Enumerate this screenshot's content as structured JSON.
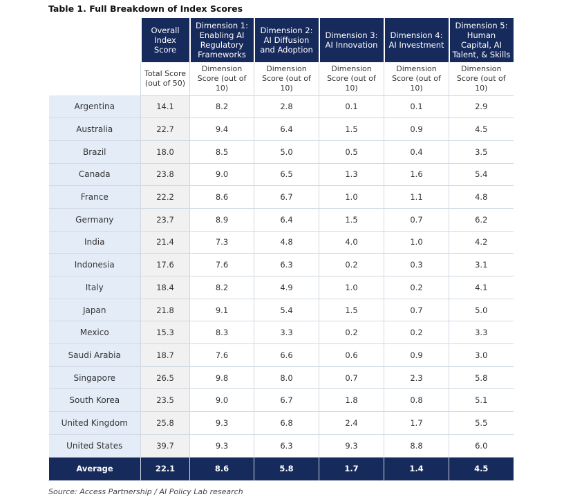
{
  "title": "Table 1. Full Breakdown of Index Scores",
  "table": {
    "headers": [
      "Overall Index Score",
      "Dimension 1: Enabling AI Regulatory Frameworks",
      "Dimension 2: AI Diffusion and Adoption",
      "Dimension 3: AI Innovation",
      "Dimension 4: AI Investment",
      "Dimension 5: Human Capital, AI Talent, & Skills"
    ],
    "subheaders": [
      "Total Score (out of 50)",
      "Dimension Score (out of 10)",
      "Dimension Score (out of 10)",
      "Dimension Score (out of 10)",
      "Dimension Score (out of 10)",
      "Dimension Score (out of 10)"
    ],
    "rows": [
      {
        "label": "Argentina",
        "values": [
          "14.1",
          "8.2",
          "2.8",
          "0.1",
          "0.1",
          "2.9"
        ]
      },
      {
        "label": "Australia",
        "values": [
          "22.7",
          "9.4",
          "6.4",
          "1.5",
          "0.9",
          "4.5"
        ]
      },
      {
        "label": "Brazil",
        "values": [
          "18.0",
          "8.5",
          "5.0",
          "0.5",
          "0.4",
          "3.5"
        ]
      },
      {
        "label": "Canada",
        "values": [
          "23.8",
          "9.0",
          "6.5",
          "1.3",
          "1.6",
          "5.4"
        ]
      },
      {
        "label": "France",
        "values": [
          "22.2",
          "8.6",
          "6.7",
          "1.0",
          "1.1",
          "4.8"
        ]
      },
      {
        "label": "Germany",
        "values": [
          "23.7",
          "8.9",
          "6.4",
          "1.5",
          "0.7",
          "6.2"
        ]
      },
      {
        "label": "India",
        "values": [
          "21.4",
          "7.3",
          "4.8",
          "4.0",
          "1.0",
          "4.2"
        ]
      },
      {
        "label": "Indonesia",
        "values": [
          "17.6",
          "7.6",
          "6.3",
          "0.2",
          "0.3",
          "3.1"
        ]
      },
      {
        "label": "Italy",
        "values": [
          "18.4",
          "8.2",
          "4.9",
          "1.0",
          "0.2",
          "4.1"
        ]
      },
      {
        "label": "Japan",
        "values": [
          "21.8",
          "9.1",
          "5.4",
          "1.5",
          "0.7",
          "5.0"
        ]
      },
      {
        "label": "Mexico",
        "values": [
          "15.3",
          "8.3",
          "3.3",
          "0.2",
          "0.2",
          "3.3"
        ]
      },
      {
        "label": "Saudi Arabia",
        "values": [
          "18.7",
          "7.6",
          "6.6",
          "0.6",
          "0.9",
          "3.0"
        ]
      },
      {
        "label": "Singapore",
        "values": [
          "26.5",
          "9.8",
          "8.0",
          "0.7",
          "2.3",
          "5.8"
        ]
      },
      {
        "label": "South Korea",
        "values": [
          "23.5",
          "9.0",
          "6.7",
          "1.8",
          "0.8",
          "5.1"
        ]
      },
      {
        "label": "United Kingdom",
        "values": [
          "25.8",
          "9.3",
          "6.8",
          "2.4",
          "1.7",
          "5.5"
        ]
      },
      {
        "label": "United States",
        "values": [
          "39.7",
          "9.3",
          "6.3",
          "9.3",
          "8.8",
          "6.0"
        ]
      }
    ],
    "average": {
      "label": "Average",
      "values": [
        "22.1",
        "8.6",
        "5.8",
        "1.7",
        "1.4",
        "4.5"
      ]
    }
  },
  "source": "Source: Access Partnership / AI Policy Lab research"
}
